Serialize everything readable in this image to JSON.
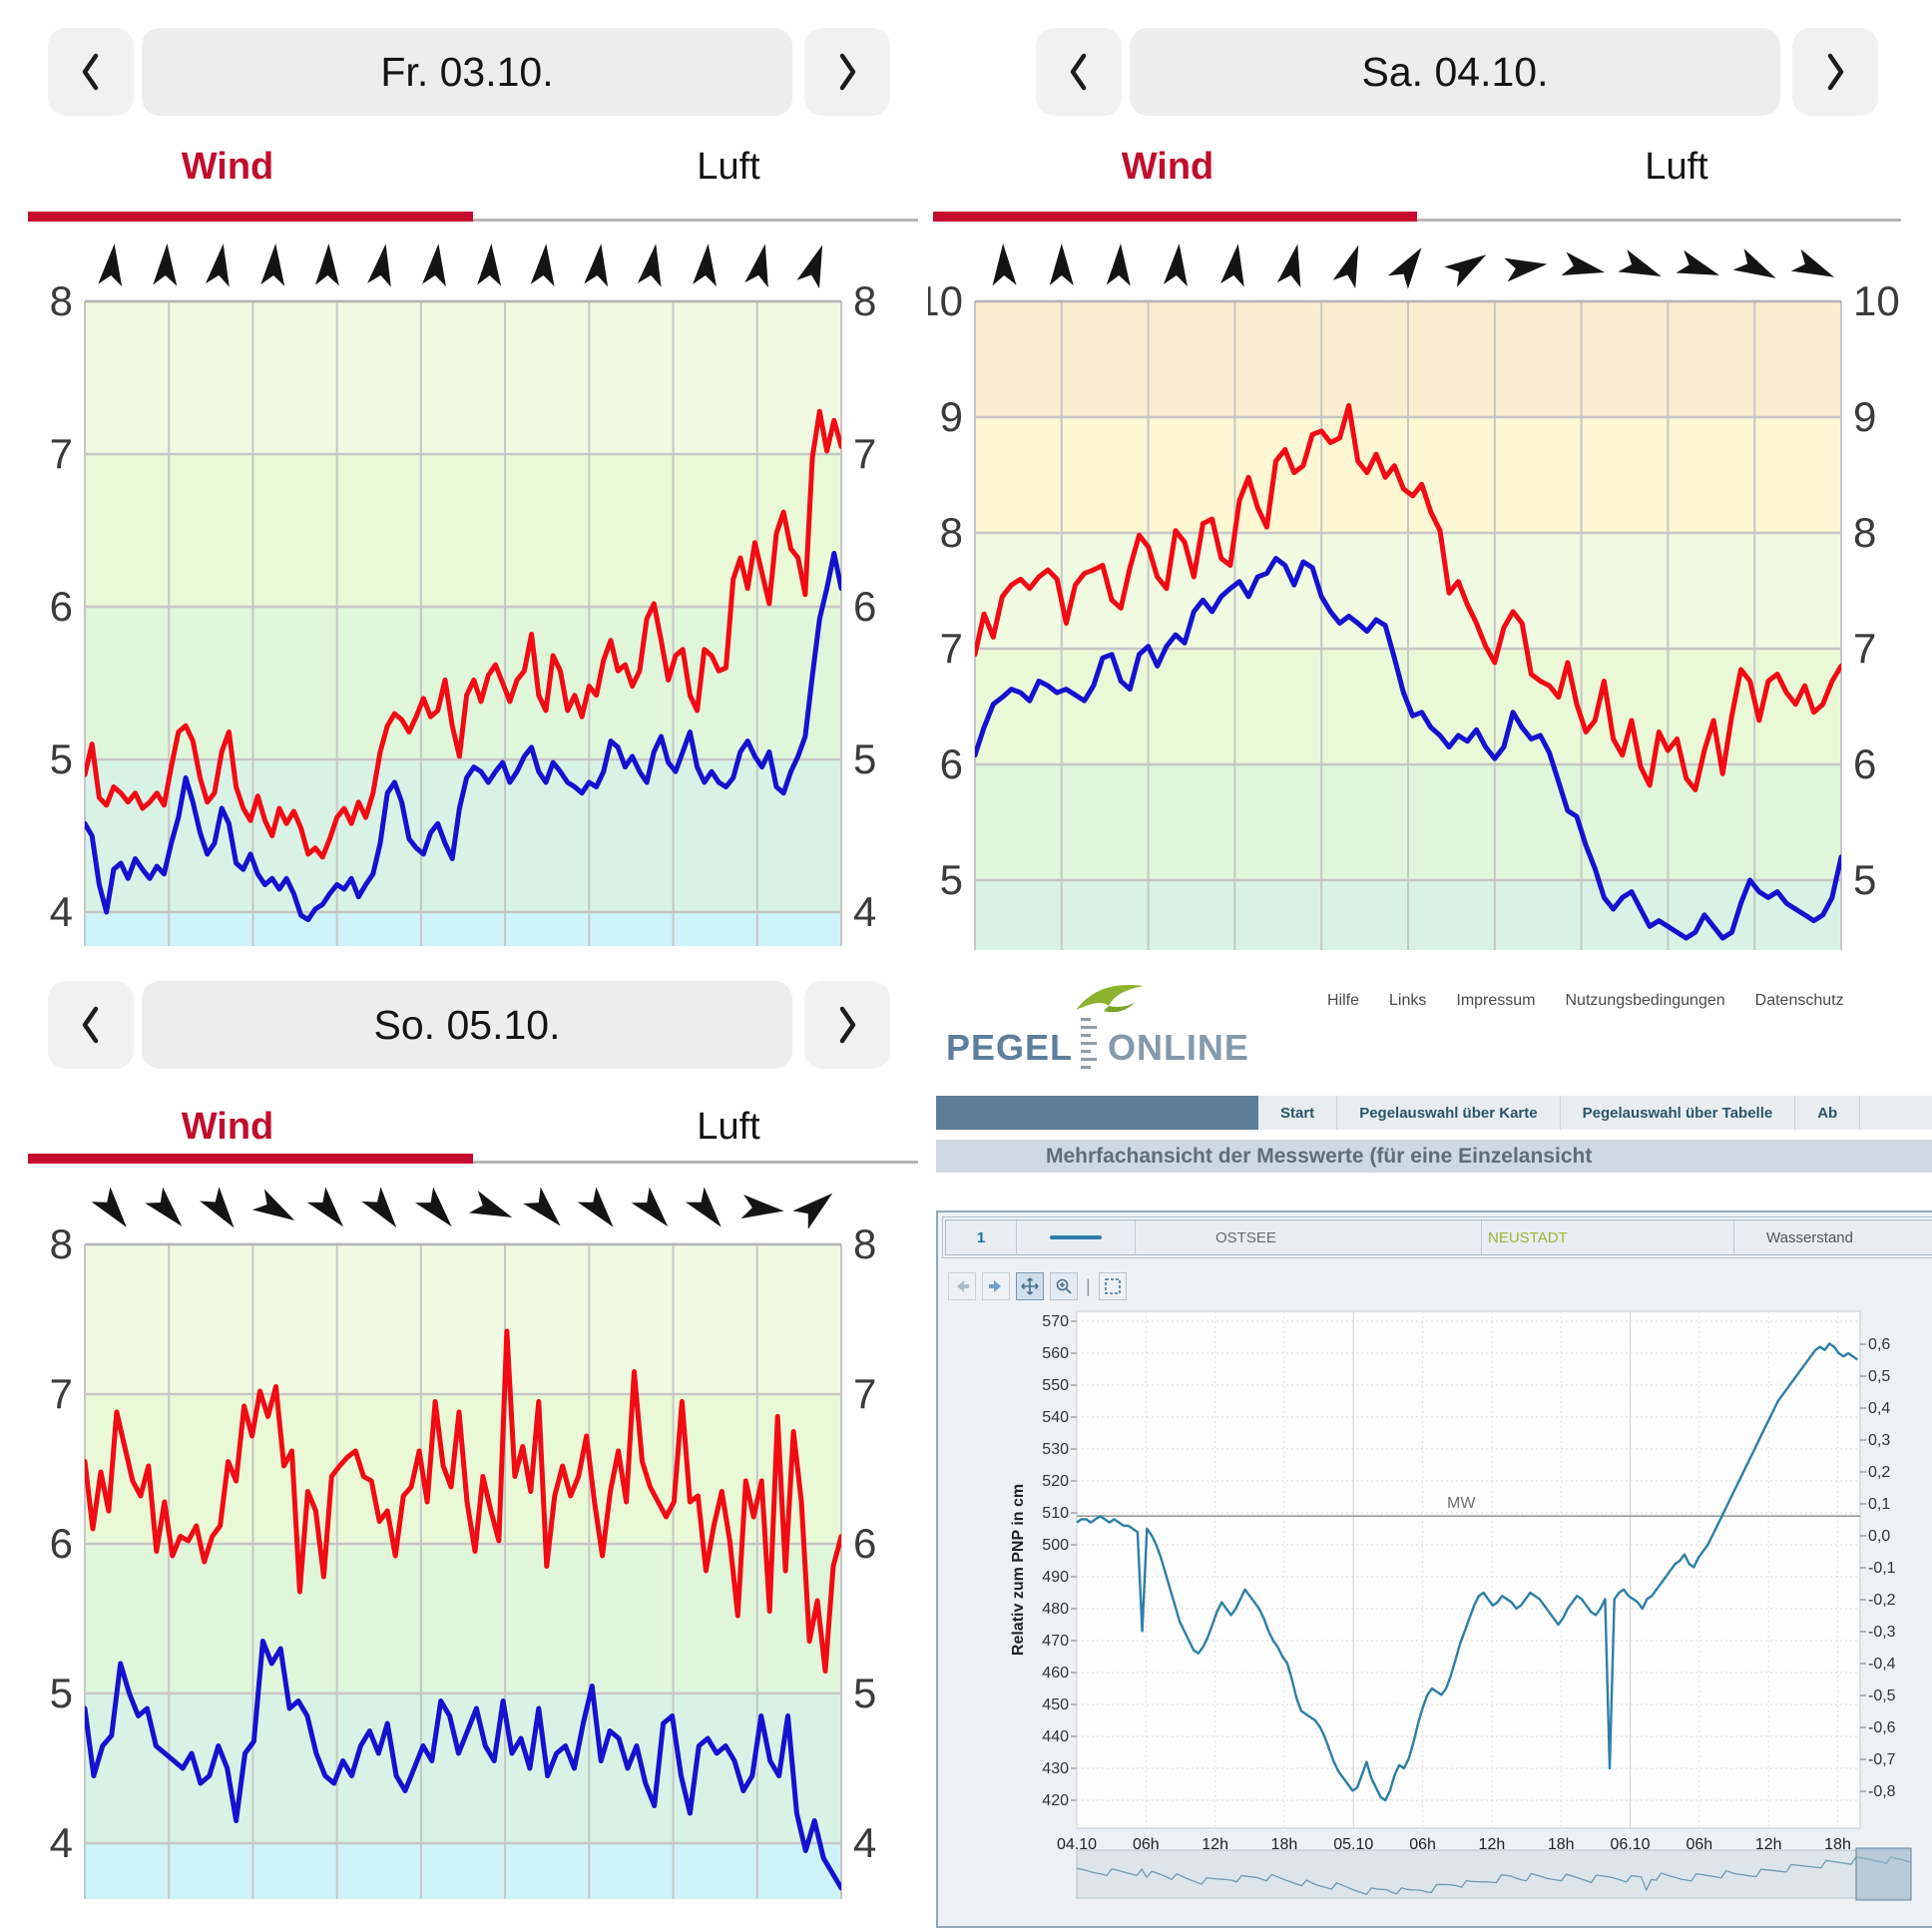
{
  "colors": {
    "gust_line": "#f20a14",
    "wind_line": "#1512cf",
    "tab_active": "#c00d2e",
    "arrow": "#141414",
    "grid": "#c6c6c6",
    "axis_text": "#3b3b3b",
    "band_colors": {
      "3": "#cdf3f9",
      "4": "#d8f3e6",
      "5": "#dff6da",
      "6": "#e9f9d7",
      "7": "#f0fbe2",
      "8": "#fdf8d3",
      "9": "#fbedcf"
    },
    "pegel_line": "#2d7ea8",
    "pegel_mini_line": "#6f9ab0"
  },
  "wind_panels": [
    {
      "id": "fr",
      "date": "Fr. 03.10.",
      "tab_wind": "Wind",
      "tab_luft": "Luft",
      "y_labels": [
        8,
        7,
        6,
        5,
        4
      ],
      "arrows_deg": [
        6,
        3,
        8,
        4,
        2,
        9,
        6,
        3,
        5,
        7,
        9,
        5,
        12,
        20
      ],
      "gusts": [
        4.9,
        5.1,
        4.75,
        4.7,
        4.82,
        4.78,
        4.72,
        4.78,
        4.68,
        4.72,
        4.78,
        4.7,
        4.95,
        5.18,
        5.22,
        5.12,
        4.88,
        4.72,
        4.78,
        5.05,
        5.18,
        4.82,
        4.68,
        4.6,
        4.76,
        4.6,
        4.5,
        4.68,
        4.58,
        4.66,
        4.55,
        4.38,
        4.42,
        4.36,
        4.48,
        4.62,
        4.68,
        4.58,
        4.72,
        4.62,
        4.78,
        5.05,
        5.22,
        5.3,
        5.26,
        5.18,
        5.28,
        5.4,
        5.28,
        5.32,
        5.52,
        5.22,
        5.02,
        5.42,
        5.52,
        5.38,
        5.55,
        5.62,
        5.5,
        5.38,
        5.52,
        5.58,
        5.82,
        5.42,
        5.32,
        5.68,
        5.58,
        5.32,
        5.42,
        5.28,
        5.48,
        5.42,
        5.65,
        5.78,
        5.58,
        5.62,
        5.48,
        5.58,
        5.92,
        6.02,
        5.78,
        5.52,
        5.68,
        5.72,
        5.42,
        5.32,
        5.72,
        5.68,
        5.58,
        5.6,
        6.18,
        6.32,
        6.12,
        6.42,
        6.22,
        6.02,
        6.48,
        6.62,
        6.38,
        6.32,
        6.08,
        6.98,
        7.28,
        7.02,
        7.22,
        7.05
      ],
      "wind": [
        4.58,
        4.5,
        4.18,
        4.0,
        4.28,
        4.32,
        4.22,
        4.35,
        4.28,
        4.22,
        4.3,
        4.25,
        4.45,
        4.62,
        4.88,
        4.72,
        4.52,
        4.38,
        4.45,
        4.68,
        4.58,
        4.32,
        4.28,
        4.38,
        4.25,
        4.18,
        4.22,
        4.15,
        4.22,
        4.12,
        3.98,
        3.95,
        4.02,
        4.05,
        4.12,
        4.18,
        4.15,
        4.22,
        4.1,
        4.18,
        4.25,
        4.45,
        4.78,
        4.85,
        4.72,
        4.48,
        4.42,
        4.38,
        4.52,
        4.58,
        4.45,
        4.35,
        4.68,
        4.88,
        4.95,
        4.92,
        4.85,
        4.92,
        4.98,
        4.85,
        4.92,
        5.02,
        5.08,
        4.92,
        4.85,
        4.98,
        4.92,
        4.85,
        4.82,
        4.78,
        4.85,
        4.82,
        4.92,
        5.12,
        5.08,
        4.95,
        5.02,
        4.92,
        4.85,
        5.05,
        5.15,
        4.98,
        4.92,
        5.05,
        5.18,
        4.95,
        4.85,
        4.92,
        4.85,
        4.82,
        4.88,
        5.05,
        5.12,
        5.02,
        4.95,
        5.05,
        4.82,
        4.78,
        4.92,
        5.02,
        5.15,
        5.55,
        5.92,
        6.12,
        6.35,
        6.12
      ]
    },
    {
      "id": "sa",
      "date": "Sa. 04.10.",
      "tab_wind": "Wind",
      "tab_luft": "Luft",
      "y_labels": [
        10,
        9,
        8,
        7,
        6,
        5
      ],
      "arrows_deg": [
        -2,
        0,
        3,
        5,
        8,
        12,
        20,
        34,
        58,
        82,
        102,
        112,
        109,
        117,
        114
      ],
      "gusts": [
        6.95,
        7.3,
        7.1,
        7.45,
        7.55,
        7.6,
        7.52,
        7.62,
        7.68,
        7.6,
        7.22,
        7.55,
        7.65,
        7.68,
        7.72,
        7.42,
        7.35,
        7.7,
        7.98,
        7.88,
        7.62,
        7.52,
        8.02,
        7.92,
        7.62,
        8.08,
        8.12,
        7.78,
        7.72,
        8.28,
        8.48,
        8.22,
        8.05,
        8.62,
        8.72,
        8.52,
        8.58,
        8.85,
        8.88,
        8.78,
        8.82,
        9.1,
        8.62,
        8.52,
        8.68,
        8.48,
        8.58,
        8.38,
        8.32,
        8.42,
        8.18,
        8.02,
        7.48,
        7.58,
        7.38,
        7.22,
        7.02,
        6.88,
        7.18,
        7.32,
        7.22,
        6.78,
        6.72,
        6.68,
        6.58,
        6.88,
        6.52,
        6.28,
        6.38,
        6.72,
        6.22,
        6.08,
        6.38,
        5.98,
        5.82,
        6.28,
        6.12,
        6.22,
        5.88,
        5.78,
        6.12,
        6.38,
        5.92,
        6.42,
        6.82,
        6.72,
        6.38,
        6.72,
        6.78,
        6.62,
        6.52,
        6.68,
        6.45,
        6.52,
        6.72,
        6.85
      ],
      "wind": [
        6.08,
        6.32,
        6.52,
        6.58,
        6.65,
        6.62,
        6.55,
        6.72,
        6.68,
        6.62,
        6.65,
        6.6,
        6.55,
        6.68,
        6.92,
        6.95,
        6.72,
        6.65,
        6.95,
        7.02,
        6.85,
        7.02,
        7.12,
        7.05,
        7.32,
        7.42,
        7.32,
        7.45,
        7.52,
        7.58,
        7.45,
        7.62,
        7.65,
        7.78,
        7.72,
        7.55,
        7.75,
        7.7,
        7.45,
        7.32,
        7.22,
        7.28,
        7.22,
        7.15,
        7.25,
        7.2,
        6.92,
        6.62,
        6.42,
        6.45,
        6.32,
        6.25,
        6.15,
        6.25,
        6.2,
        6.3,
        6.15,
        6.05,
        6.15,
        6.45,
        6.32,
        6.22,
        6.25,
        6.1,
        5.85,
        5.6,
        5.55,
        5.3,
        5.1,
        4.85,
        4.75,
        4.85,
        4.9,
        4.75,
        4.6,
        4.65,
        4.6,
        4.55,
        4.5,
        4.55,
        4.7,
        4.6,
        4.5,
        4.55,
        4.8,
        5.0,
        4.9,
        4.85,
        4.9,
        4.8,
        4.75,
        4.7,
        4.65,
        4.7,
        4.85,
        5.2
      ]
    },
    {
      "id": "so",
      "date": "So. 05.10.",
      "tab_wind": "Wind",
      "tab_luft": "Luft",
      "y_labels": [
        8,
        7,
        6,
        5,
        4
      ],
      "arrows_deg": [
        142,
        138,
        144,
        120,
        140,
        143,
        139,
        112,
        137,
        141,
        139,
        141,
        96,
        50
      ],
      "gusts": [
        6.55,
        6.1,
        6.48,
        6.22,
        6.88,
        6.65,
        6.42,
        6.32,
        6.52,
        5.95,
        6.28,
        5.92,
        6.05,
        6.02,
        6.12,
        5.88,
        6.05,
        6.12,
        6.55,
        6.42,
        6.92,
        6.72,
        7.02,
        6.85,
        7.05,
        6.52,
        6.62,
        5.68,
        6.35,
        6.22,
        5.78,
        6.45,
        6.52,
        6.58,
        6.62,
        6.45,
        6.42,
        6.15,
        6.22,
        5.92,
        6.32,
        6.38,
        6.62,
        6.28,
        6.95,
        6.52,
        6.38,
        6.88,
        6.28,
        5.95,
        6.45,
        6.22,
        6.02,
        7.42,
        6.45,
        6.65,
        6.35,
        6.95,
        5.85,
        6.32,
        6.52,
        6.32,
        6.45,
        6.72,
        6.28,
        5.92,
        6.35,
        6.62,
        6.28,
        7.15,
        6.55,
        6.38,
        6.28,
        6.18,
        6.28,
        6.95,
        6.28,
        6.32,
        5.82,
        6.12,
        6.35,
        6.02,
        5.52,
        6.42,
        6.18,
        6.42,
        5.55,
        6.85,
        5.82,
        6.75,
        6.28,
        5.35,
        5.62,
        5.15,
        5.85,
        6.05
      ],
      "wind": [
        4.9,
        4.45,
        4.65,
        4.72,
        5.2,
        5.0,
        4.85,
        4.9,
        4.65,
        4.6,
        4.55,
        4.5,
        4.6,
        4.4,
        4.45,
        4.65,
        4.5,
        4.15,
        4.6,
        4.68,
        5.35,
        5.2,
        5.3,
        4.9,
        4.95,
        4.85,
        4.6,
        4.45,
        4.4,
        4.55,
        4.45,
        4.65,
        4.75,
        4.6,
        4.8,
        4.45,
        4.35,
        4.5,
        4.65,
        4.55,
        4.95,
        4.85,
        4.6,
        4.75,
        4.9,
        4.65,
        4.55,
        4.95,
        4.6,
        4.7,
        4.5,
        4.9,
        4.45,
        4.6,
        4.65,
        4.5,
        4.8,
        5.05,
        4.55,
        4.75,
        4.7,
        4.5,
        4.65,
        4.4,
        4.25,
        4.8,
        4.85,
        4.45,
        4.2,
        4.65,
        4.7,
        4.6,
        4.65,
        4.55,
        4.35,
        4.45,
        4.85,
        4.55,
        4.45,
        4.85,
        4.2,
        3.95,
        4.15,
        3.9,
        3.8,
        3.7
      ]
    }
  ],
  "pegel": {
    "brand": {
      "name_left": "PEGEL",
      "name_right": "ONLINE"
    },
    "header_links": [
      "Hilfe",
      "Links",
      "Impressum",
      "Nutzungsbedingungen",
      "Datenschutz"
    ],
    "nav_items": [
      "Start",
      "Pegelauswahl über Karte",
      "Pegelauswahl über Tabelle",
      "Ab"
    ],
    "heading": "Mehrfachansicht der Messwerte (für eine Einzelansicht",
    "legend": {
      "row_number": "1",
      "waterway": "OSTSEE",
      "station": "NEUSTADT",
      "parameter": "Wasserstand"
    },
    "toolbar_icons": [
      "back-icon",
      "forward-icon",
      "pan-icon",
      "zoom-icon",
      "separator",
      "extent-icon"
    ],
    "y_axis_label": "Relativ zum PNP in cm",
    "mw_label": "MW",
    "mw_value_cm": 509,
    "y_ticks_left": [
      570,
      560,
      550,
      540,
      530,
      520,
      510,
      500,
      490,
      480,
      470,
      460,
      450,
      440,
      430,
      420
    ],
    "y_ticks_right": [
      "0,6",
      "0,5",
      "0,4",
      "0,3",
      "0,2",
      "0,1",
      "0,0",
      "-0,1",
      "-0,2",
      "-0,3",
      "-0,4",
      "-0,5",
      "-0,6",
      "-0,7",
      "-0,8"
    ],
    "x_ticks": [
      "04.10",
      "06h",
      "12h",
      "18h",
      "05.10",
      "06h",
      "12h",
      "18h",
      "06.10",
      "06h",
      "12h",
      "18h"
    ],
    "values_cm": [
      507,
      508,
      508,
      507,
      508,
      509,
      508,
      507,
      508,
      507,
      506,
      506,
      505,
      504,
      473,
      505,
      503,
      500,
      496,
      491,
      486,
      481,
      476,
      473,
      470,
      467,
      466,
      468,
      471,
      475,
      479,
      482,
      480,
      478,
      480,
      483,
      486,
      484,
      482,
      480,
      477,
      473,
      470,
      468,
      465,
      463,
      458,
      452,
      448,
      447,
      446,
      445,
      443,
      440,
      436,
      432,
      429,
      427,
      425,
      423,
      424,
      428,
      432,
      427,
      424,
      421,
      420,
      423,
      428,
      431,
      430,
      433,
      438,
      444,
      449,
      453,
      455,
      454,
      453,
      455,
      459,
      464,
      469,
      473,
      477,
      481,
      484,
      485,
      483,
      481,
      482,
      484,
      483,
      482,
      480,
      481,
      483,
      485,
      484,
      483,
      481,
      479,
      477,
      475,
      477,
      480,
      482,
      484,
      483,
      481,
      479,
      478,
      480,
      483,
      430,
      483,
      485,
      486,
      484,
      483,
      482,
      480,
      483,
      484,
      486,
      488,
      490,
      492,
      494,
      495,
      497,
      494,
      493,
      496,
      498,
      500,
      503,
      506,
      509,
      512,
      515,
      518,
      521,
      524,
      527,
      530,
      533,
      536,
      539,
      542,
      545,
      547,
      549,
      551,
      553,
      555,
      557,
      559,
      561,
      562,
      561,
      563,
      562,
      560,
      559,
      560,
      559,
      558
    ]
  }
}
